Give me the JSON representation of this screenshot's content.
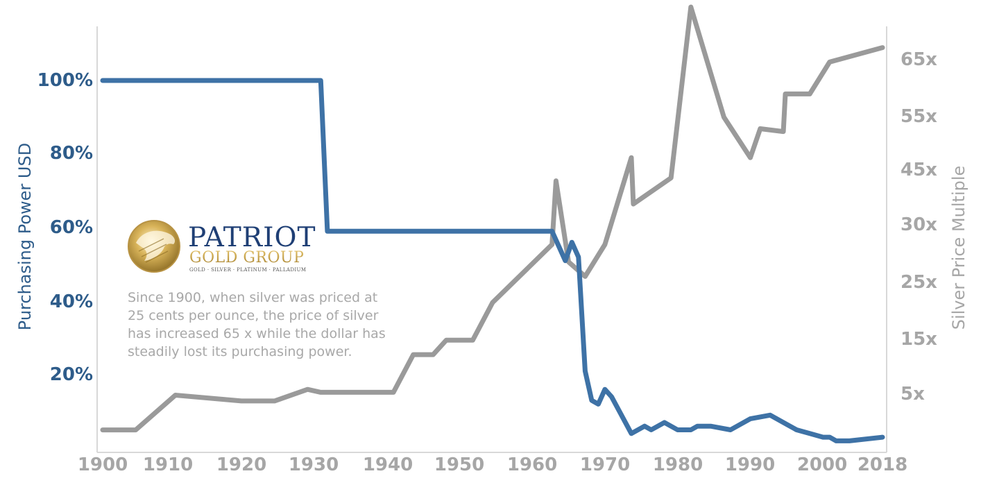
{
  "chart_data": {
    "type": "line",
    "x_ticks": [
      "1900",
      "1910",
      "1920",
      "1930",
      "1940",
      "1950",
      "1960",
      "1970",
      "1980",
      "1990",
      "2000",
      "2018"
    ],
    "left_axis": {
      "title": "Purchasing Power USD",
      "ticks": [
        "20%",
        "40%",
        "60%",
        "80%",
        "100%"
      ],
      "ylim": [
        0,
        115
      ]
    },
    "right_axis": {
      "title": "Silver Price Multiple",
      "ticks": [
        "5x",
        "15x",
        "25x",
        "30x",
        "45x",
        "55x",
        "65x"
      ],
      "ylim": [
        0,
        72
      ]
    },
    "xlim": [
      1900,
      2018
    ],
    "series": [
      {
        "name": "Purchasing Power USD",
        "axis": "left",
        "color": "#3e72a6",
        "x": [
          1900,
          1933,
          1934,
          1968,
          1970,
          1971,
          1972,
          1973,
          1974,
          1975,
          1976,
          1977,
          1980,
          1982,
          1983,
          1985,
          1987,
          1989,
          1990,
          1992,
          1995,
          1998,
          2001,
          2004,
          2005,
          2007,
          2009,
          2010,
          2011,
          2013,
          2018
        ],
        "values": [
          100,
          100,
          59,
          59,
          51,
          56,
          52,
          21,
          13,
          12,
          16,
          14,
          4,
          6,
          5,
          7,
          5,
          5,
          6,
          6,
          5,
          8,
          9,
          6,
          5,
          4,
          3,
          3,
          2,
          2,
          3
        ]
      },
      {
        "name": "Silver Price Multiple",
        "axis": "right",
        "color": "#9a9a9a",
        "x": [
          1900,
          1905,
          1911,
          1921,
          1926,
          1931,
          1933,
          1944,
          1947,
          1950,
          1952,
          1956,
          1959,
          1968,
          1968.6,
          1970.5,
          1973,
          1976,
          1980,
          1980.3,
          1986,
          1989,
          1994,
          1998,
          1999.5,
          2003,
          2003.3,
          2007,
          2010,
          2018
        ],
        "values": [
          1,
          1,
          7,
          6,
          6,
          8,
          7.5,
          7.5,
          14,
          14,
          16.5,
          16.5,
          23,
          33,
          44,
          30,
          27.5,
          33,
          48,
          40,
          44.5,
          74,
          55,
          48,
          53,
          52.5,
          59,
          59,
          64.5,
          67
        ]
      }
    ]
  },
  "logo": {
    "line1": "PATRIOT",
    "line2": "GOLD GROUP",
    "tagline": "GOLD · SILVER · PLATINUM · PALLADIUM"
  },
  "note": {
    "lines": [
      "Since 1900, when silver was priced at",
      "25 cents per ounce, the price of silver",
      "has increased 65 x while the dollar has",
      "steadily lost its purchasing power."
    ]
  },
  "colors": {
    "blue": "#3e72a6",
    "blue_text": "#2e5c8a",
    "gray": "#9a9a9a",
    "gray_text": "#a6a6a6",
    "axis_line": "#d8d8d8"
  }
}
